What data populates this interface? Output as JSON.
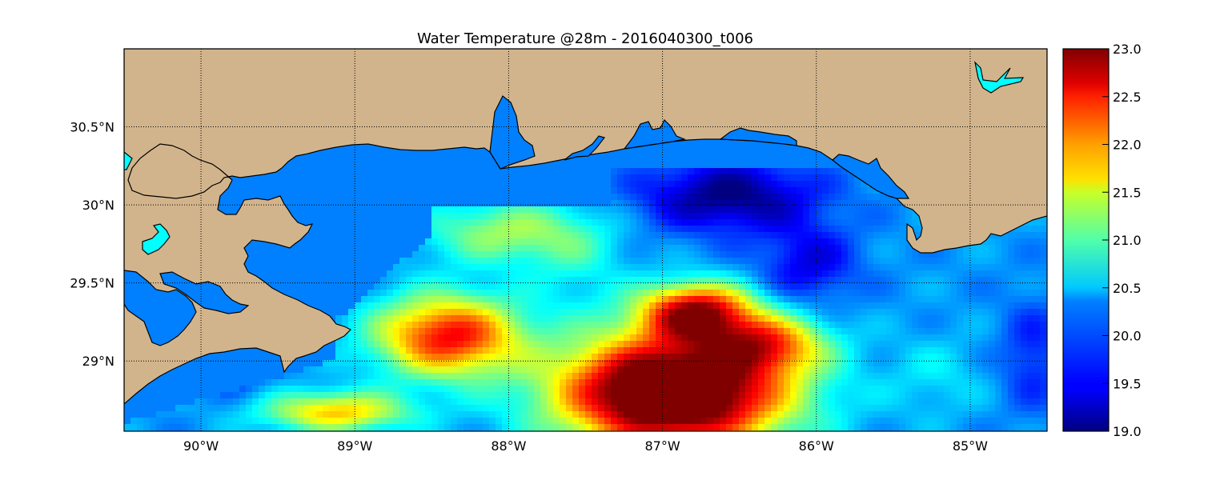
{
  "title": "Water Temperature @28m - 2016040300_t006",
  "map": {
    "lon_range": [
      -90.5,
      -84.5
    ],
    "lat_range": [
      28.55,
      31.0
    ],
    "lon_ticks": [
      {
        "value": -90,
        "label": "90°W"
      },
      {
        "value": -89,
        "label": "89°W"
      },
      {
        "value": -88,
        "label": "88°W"
      },
      {
        "value": -87,
        "label": "87°W"
      },
      {
        "value": -86,
        "label": "86°W"
      },
      {
        "value": -85,
        "label": "85°W"
      }
    ],
    "lat_ticks": [
      {
        "value": 30.5,
        "label": "30.5°N"
      },
      {
        "value": 30.0,
        "label": "30°N"
      },
      {
        "value": 29.5,
        "label": "29.5°N"
      },
      {
        "value": 29.0,
        "label": "29°N"
      }
    ],
    "grid": true,
    "land_color": "#d2b48c",
    "lake_color": "#00ffff",
    "nodata_water_color": "#0080ff"
  },
  "colorbar": {
    "min": 19.0,
    "max": 23.0,
    "colormap": "jet",
    "ticks": [
      "23.0",
      "22.5",
      "22.0",
      "21.5",
      "21.0",
      "20.5",
      "20.0",
      "19.5",
      "19.0"
    ]
  }
}
